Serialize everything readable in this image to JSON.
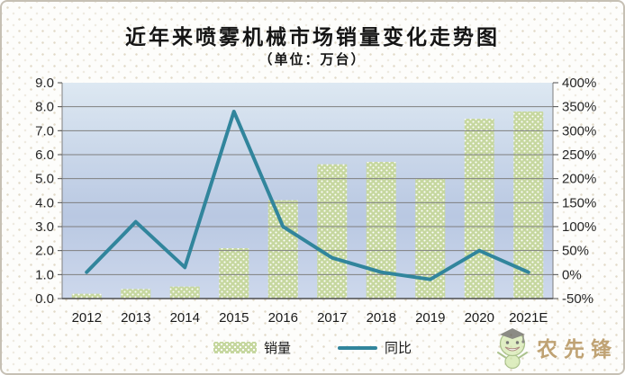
{
  "title": "近年来喷雾机械市场销量变化走势图",
  "subtitle": "（单位：万台）",
  "legend": {
    "sales_label": "销量",
    "yoy_label": "同比"
  },
  "watermark": {
    "text": "农先锋"
  },
  "colors": {
    "bar_fill": "#c6d79f",
    "bar_dot": "#ffffff",
    "line": "#31859c",
    "plot_bg_top": "#dde8f2",
    "plot_bg_mid": "#b9c8e2",
    "plot_bg_bottom": "#cdd8ec",
    "gridline": "#7f7f7f",
    "axis": "#4d4d4d"
  },
  "chart_data": {
    "type": "bar",
    "subtype": "bar+line combo",
    "title": "近年来喷雾机械市场销量变化走势图",
    "subtitle_unit": "（单位：万台）",
    "categories": [
      "2012",
      "2013",
      "2014",
      "2015",
      "2016",
      "2017",
      "2018",
      "2019",
      "2020",
      "2021E"
    ],
    "series": [
      {
        "name": "销量",
        "type": "bar",
        "axis": "left",
        "values": [
          0.2,
          0.4,
          0.5,
          2.1,
          4.1,
          5.6,
          5.7,
          5.0,
          7.5,
          7.8
        ]
      },
      {
        "name": "同比",
        "type": "line",
        "axis": "right",
        "values_pct": [
          5,
          110,
          15,
          340,
          100,
          35,
          5,
          -10,
          50,
          5
        ]
      }
    ],
    "y_left": {
      "min": 0,
      "max": 9,
      "step": 1,
      "ticks_top_to_bottom": [
        "9.0",
        "8.0",
        "7.0",
        "6.0",
        "5.0",
        "4.0",
        "3.0",
        "2.0",
        "1.0",
        "0.0"
      ]
    },
    "y_right": {
      "min": -50,
      "max": 400,
      "step": 50,
      "ticks_top_to_bottom": [
        "400%",
        "350%",
        "300%",
        "250%",
        "200%",
        "150%",
        "100%",
        "50%",
        "0%",
        "-50%"
      ]
    },
    "grid": true,
    "legend_position": "bottom"
  }
}
